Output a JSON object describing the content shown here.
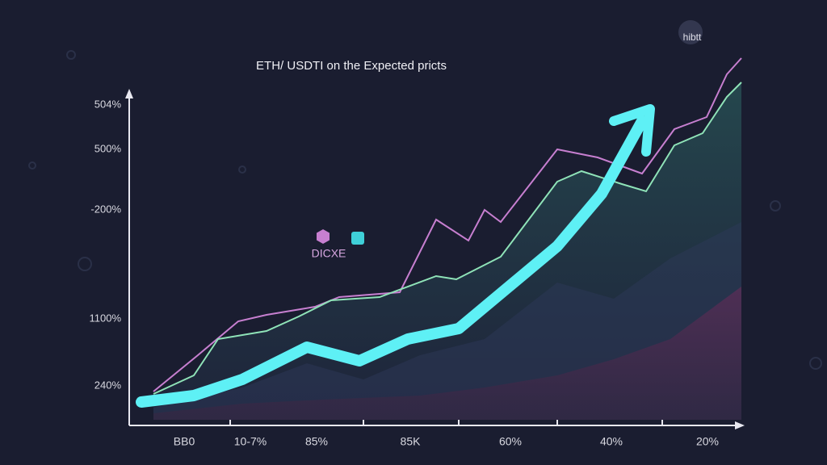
{
  "chart_data": {
    "type": "line",
    "title": "ETH/ USDTI on the Expected pricts",
    "y_labels": [
      "504%",
      "500%",
      "-200%",
      "1100%",
      "240%"
    ],
    "x_labels": [
      "BB0",
      "10-7%",
      "85%",
      "85K",
      "60%",
      "40%",
      "20%"
    ],
    "legend_label": "DICXE",
    "watermark": "hibtt"
  }
}
